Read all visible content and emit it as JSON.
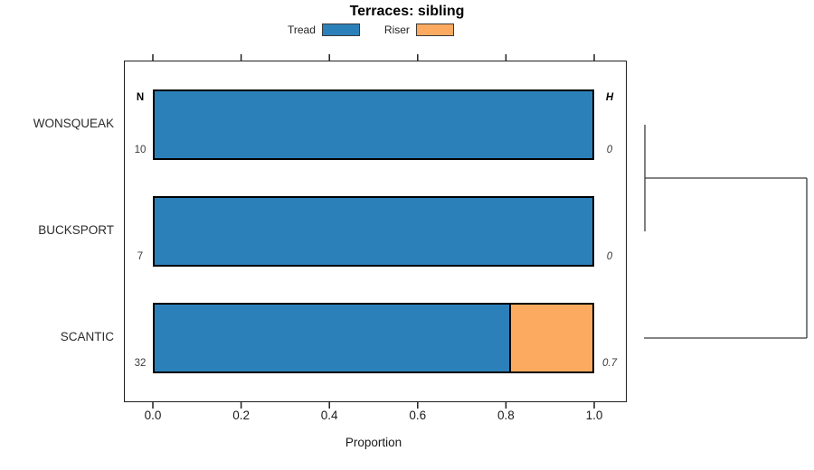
{
  "title": "Terraces: sibling",
  "legend": {
    "items": [
      {
        "label": "Tread",
        "color": "#2c80b9"
      },
      {
        "label": "Riser",
        "color": "#fbaa60"
      }
    ]
  },
  "columns": {
    "n_header": "N",
    "h_header": "H"
  },
  "axis": {
    "xlabel": "Proportion",
    "xlim": [
      0,
      1
    ],
    "ticks": [
      {
        "value": 0.0,
        "label": "0.0"
      },
      {
        "value": 0.2,
        "label": "0.2"
      },
      {
        "value": 0.4,
        "label": "0.4"
      },
      {
        "value": 0.6,
        "label": "0.6"
      },
      {
        "value": 0.8,
        "label": "0.8"
      },
      {
        "value": 1.0,
        "label": "1.0"
      }
    ]
  },
  "chart_data": {
    "type": "bar",
    "orientation": "horizontal",
    "stacked": true,
    "title": "Terraces: sibling",
    "xlabel": "Proportion",
    "xlim": [
      0,
      1
    ],
    "grid": false,
    "legend_position": "top",
    "categories": [
      "WONSQUEAK",
      "BUCKSPORT",
      "SCANTIC"
    ],
    "series": [
      {
        "name": "Tread",
        "color": "#2c80b9",
        "values": [
          1.0,
          1.0,
          0.81
        ]
      },
      {
        "name": "Riser",
        "color": "#fbaa60",
        "values": [
          0.0,
          0.0,
          0.19
        ]
      }
    ],
    "row_annotations": {
      "N": [
        "10",
        "7",
        "32"
      ],
      "H": [
        "0",
        "0",
        "0.7"
      ]
    },
    "dendrogram": {
      "position": "right",
      "merges": [
        {
          "children": [
            0,
            1
          ],
          "height": 0
        },
        {
          "children": [
            "merge0",
            2
          ],
          "height": 1
        }
      ]
    }
  }
}
